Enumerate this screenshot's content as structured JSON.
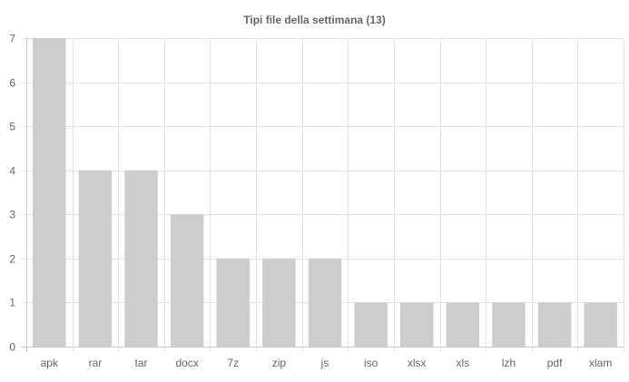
{
  "chart_data": {
    "type": "bar",
    "title": "Tipi file della settimana (13)",
    "xlabel": "",
    "ylabel": "",
    "categories": [
      "apk",
      "rar",
      "tar",
      "docx",
      "7z",
      "zip",
      "js",
      "iso",
      "xlsx",
      "xls",
      "lzh",
      "pdf",
      "xlam"
    ],
    "values": [
      7,
      4,
      4,
      3,
      2,
      2,
      2,
      1,
      1,
      1,
      1,
      1,
      1
    ],
    "ylim": [
      0,
      7
    ],
    "yticks": [
      "0",
      "1",
      "2",
      "3",
      "4",
      "5",
      "6",
      "7"
    ],
    "grid": true,
    "legend": "none",
    "bar_color": "#cdcdcf"
  }
}
